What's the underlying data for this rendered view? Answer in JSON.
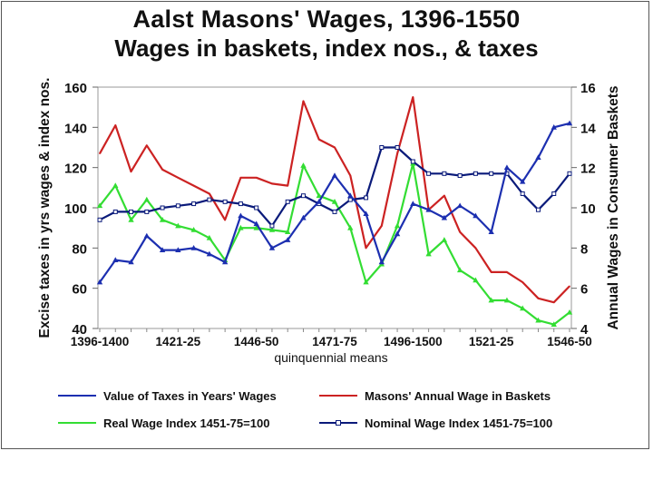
{
  "chart_data": {
    "type": "line",
    "title": "Aalst Masons' Wages, 1396-1550",
    "subtitle": "Wages in baskets, index nos., & taxes",
    "xlabel": "quinquennial means",
    "ylabel_left": "Excise taxes in yrs wages & index nos.",
    "ylabel_right": "Annual Wages in Consumer Baskets",
    "ylim_left": [
      40,
      160
    ],
    "ylim_right": [
      4,
      16
    ],
    "yticks_left": [
      "40",
      "60",
      "80",
      "100",
      "120",
      "140",
      "160"
    ],
    "yticks_right": [
      "4",
      "6",
      "8",
      "10",
      "12",
      "14",
      "16"
    ],
    "x_ticklabels": [
      "1396-1400",
      "1421-25",
      "1446-50",
      "1471-75",
      "1496-1500",
      "1521-25",
      "1546-50"
    ],
    "x_count": 31,
    "grid": false,
    "legend_position": "bottom",
    "series": [
      {
        "name": "Value of Taxes in Years' Wages",
        "color": "#1c2fb0",
        "marker": "triangle",
        "axis": "left",
        "values": [
          63,
          74,
          73,
          86,
          79,
          79,
          80,
          77,
          73,
          96,
          92,
          80,
          84,
          95,
          103,
          116,
          106,
          97,
          73,
          87,
          102,
          99,
          95,
          101,
          96,
          88,
          120,
          113,
          125,
          140,
          142
        ]
      },
      {
        "name": "Masons' Annual Wage in Baskets",
        "color": "#cc2222",
        "marker": "none",
        "axis": "right",
        "values": [
          12.7,
          14.1,
          11.8,
          13.1,
          11.9,
          11.5,
          11.1,
          10.7,
          9.4,
          11.5,
          11.5,
          11.2,
          11.1,
          15.3,
          13.4,
          13.0,
          11.6,
          8.0,
          9.1,
          12.7,
          15.5,
          9.9,
          10.6,
          8.8,
          8.0,
          6.8,
          6.8,
          6.3,
          5.5,
          5.3,
          6.1
        ]
      },
      {
        "name": "Real Wage Index 1451-75=100",
        "color": "#33dd33",
        "marker": "triangle",
        "axis": "left",
        "values": [
          101,
          111,
          94,
          104,
          94,
          91,
          89,
          85,
          74,
          90,
          90,
          89,
          88,
          121,
          106,
          103,
          90,
          63,
          72,
          91,
          122,
          77,
          84,
          69,
          64,
          54,
          54,
          50,
          44,
          42,
          48
        ]
      },
      {
        "name": "Nominal Wage Index 1451-75=100",
        "color": "#0a1a7a",
        "marker": "square",
        "axis": "left",
        "values": [
          94,
          98,
          98,
          98,
          100,
          101,
          102,
          104,
          103,
          102,
          100,
          91,
          103,
          106,
          102,
          98,
          104,
          105,
          130,
          130,
          123,
          117,
          117,
          116,
          117,
          117,
          117,
          107,
          99,
          107,
          117
        ]
      }
    ]
  }
}
